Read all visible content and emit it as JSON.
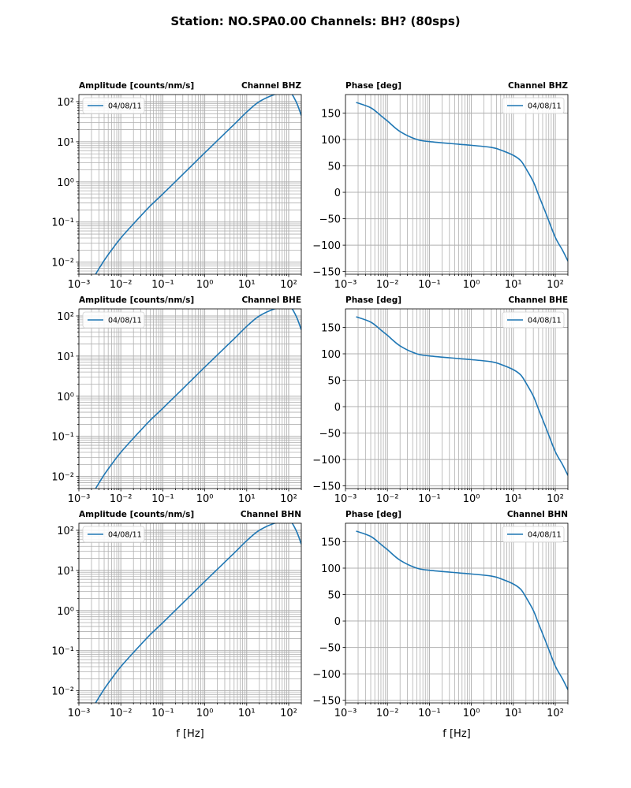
{
  "title": "Station: NO.SPA0.00 Channels: BH? (80sps)",
  "colors": {
    "line": "#1f77b4",
    "grid": "#b0b0b0",
    "axes": "#000000"
  },
  "chart_data": [
    {
      "id": "amp-bhz",
      "type": "line",
      "xscale": "log",
      "yscale": "log",
      "title_left": "Amplitude [counts/nm/s]",
      "title_right": "Channel BHZ",
      "xlabel": "",
      "xlim": [
        0.001,
        200
      ],
      "ylim": [
        0.005,
        150
      ],
      "legend": "04/08/11",
      "legend_loc": "upper-left",
      "x": [
        0.0025,
        0.004,
        0.006,
        0.01,
        0.02,
        0.05,
        0.1,
        0.5,
        1,
        5,
        10,
        20,
        50,
        100,
        150,
        200
      ],
      "y": [
        0.005,
        0.011,
        0.02,
        0.04,
        0.09,
        0.25,
        0.5,
        2.6,
        5.3,
        27,
        55,
        100,
        155,
        180,
        100,
        45
      ]
    },
    {
      "id": "phase-bhz",
      "type": "line",
      "xscale": "log",
      "yscale": "linear",
      "title_left": "Phase [deg]",
      "title_right": "Channel BHZ",
      "xlabel": "",
      "xlim": [
        0.001,
        200
      ],
      "ylim": [
        -155,
        185
      ],
      "legend": "04/08/11",
      "legend_loc": "upper-right",
      "x": [
        0.0018,
        0.004,
        0.007,
        0.01,
        0.02,
        0.05,
        0.1,
        0.5,
        1,
        3,
        5,
        10,
        15,
        20,
        30,
        40,
        60,
        100,
        150,
        200
      ],
      "y": [
        170,
        160,
        145,
        135,
        115,
        100,
        96,
        91,
        89,
        85,
        80,
        70,
        60,
        45,
        20,
        -5,
        -40,
        -85,
        -110,
        -130
      ]
    },
    {
      "id": "amp-bhe",
      "type": "line",
      "xscale": "log",
      "yscale": "log",
      "title_left": "Amplitude [counts/nm/s]",
      "title_right": "Channel BHE",
      "xlabel": "",
      "xlim": [
        0.001,
        200
      ],
      "ylim": [
        0.005,
        150
      ],
      "legend": "04/08/11",
      "legend_loc": "upper-left",
      "x": [
        0.0025,
        0.004,
        0.006,
        0.01,
        0.02,
        0.05,
        0.1,
        0.5,
        1,
        5,
        10,
        20,
        50,
        100,
        150,
        200
      ],
      "y": [
        0.005,
        0.011,
        0.02,
        0.04,
        0.09,
        0.25,
        0.5,
        2.6,
        5.3,
        27,
        55,
        100,
        155,
        180,
        100,
        45
      ]
    },
    {
      "id": "phase-bhe",
      "type": "line",
      "xscale": "log",
      "yscale": "linear",
      "title_left": "Phase [deg]",
      "title_right": "Channel BHE",
      "xlabel": "",
      "xlim": [
        0.001,
        200
      ],
      "ylim": [
        -155,
        185
      ],
      "legend": "04/08/11",
      "legend_loc": "upper-right",
      "x": [
        0.0018,
        0.004,
        0.007,
        0.01,
        0.02,
        0.05,
        0.1,
        0.5,
        1,
        3,
        5,
        10,
        15,
        20,
        30,
        40,
        60,
        100,
        150,
        200
      ],
      "y": [
        170,
        160,
        145,
        135,
        115,
        100,
        96,
        91,
        89,
        85,
        80,
        70,
        60,
        45,
        20,
        -5,
        -40,
        -85,
        -110,
        -130
      ]
    },
    {
      "id": "amp-bhn",
      "type": "line",
      "xscale": "log",
      "yscale": "log",
      "title_left": "Amplitude [counts/nm/s]",
      "title_right": "Channel BHN",
      "xlabel": "f [Hz]",
      "xlim": [
        0.001,
        200
      ],
      "ylim": [
        0.005,
        150
      ],
      "legend": "04/08/11",
      "legend_loc": "upper-left",
      "x": [
        0.0025,
        0.004,
        0.006,
        0.01,
        0.02,
        0.05,
        0.1,
        0.5,
        1,
        5,
        10,
        20,
        50,
        100,
        150,
        200
      ],
      "y": [
        0.005,
        0.011,
        0.02,
        0.04,
        0.09,
        0.25,
        0.5,
        2.6,
        5.3,
        27,
        55,
        100,
        155,
        180,
        100,
        45
      ]
    },
    {
      "id": "phase-bhn",
      "type": "line",
      "xscale": "log",
      "yscale": "linear",
      "title_left": "Phase [deg]",
      "title_right": "Channel BHN",
      "xlabel": "f [Hz]",
      "xlim": [
        0.001,
        200
      ],
      "ylim": [
        -155,
        185
      ],
      "legend": "04/08/11",
      "legend_loc": "upper-right",
      "x": [
        0.0018,
        0.004,
        0.007,
        0.01,
        0.02,
        0.05,
        0.1,
        0.5,
        1,
        3,
        5,
        10,
        15,
        20,
        30,
        40,
        60,
        100,
        150,
        200
      ],
      "y": [
        170,
        160,
        145,
        135,
        115,
        100,
        96,
        91,
        89,
        85,
        80,
        70,
        60,
        45,
        20,
        -5,
        -40,
        -85,
        -110,
        -130
      ]
    }
  ]
}
